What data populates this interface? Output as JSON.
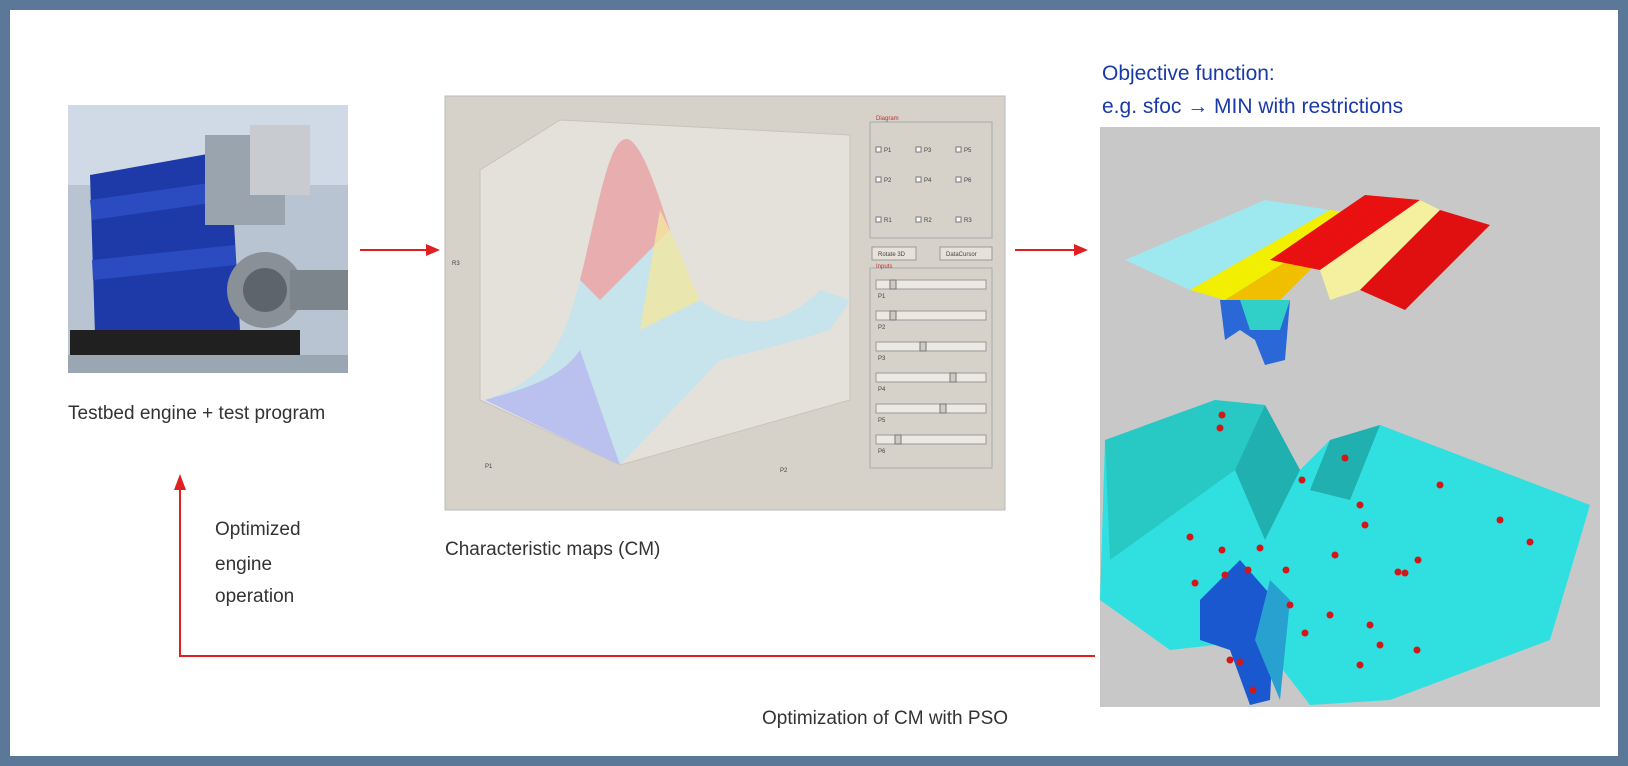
{
  "objective": {
    "line1": "Objective function:",
    "line2": "e.g. sfoc → MIN with restrictions"
  },
  "engine_caption": "Testbed engine + test program",
  "cm_caption": "Characteristic maps (CM)",
  "feedback_label": [
    "Optimized",
    "engine",
    "operation"
  ],
  "pso_caption": "Optimization of CM with PSO",
  "gui": {
    "group_title": "Diagram",
    "checkboxes": [
      "P1",
      "P3",
      "P5",
      "P2",
      "P4",
      "P6",
      "R1",
      "R2",
      "R3"
    ],
    "buttons": [
      "Rotate 3D",
      "DataCursor"
    ],
    "inputs_title": "Inputs",
    "sliders": [
      "P1",
      "P2",
      "P3",
      "P4",
      "P5",
      "P6"
    ],
    "axis_labels": [
      "P1",
      "P2",
      "R3"
    ]
  }
}
